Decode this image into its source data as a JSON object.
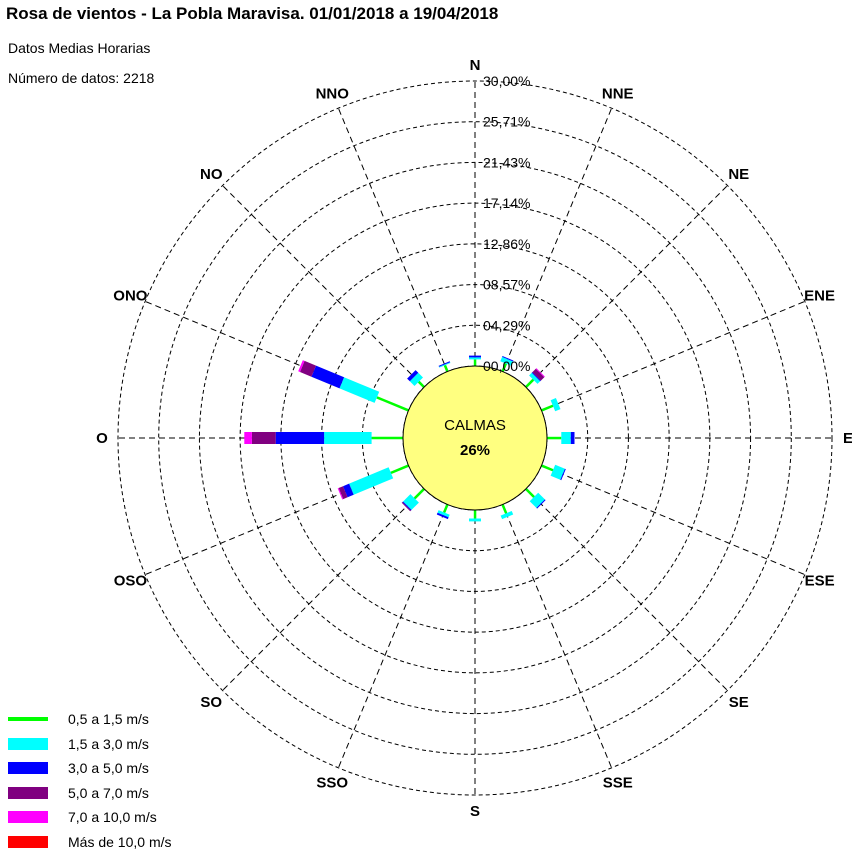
{
  "header": {
    "title": "Rosa de vientos - La Pobla Maravisa. 01/01/2018 a 19/04/2018",
    "subtitle": "Datos Medias Horarias",
    "count_line": "Número de datos: 2218"
  },
  "chart_data": {
    "type": "wind-rose",
    "title": "Rosa de vientos - La Pobla Maravisa. 01/01/2018 a 19/04/2018",
    "directions": [
      "N",
      "NNE",
      "NE",
      "ENE",
      "E",
      "ESE",
      "SE",
      "SSE",
      "S",
      "SSO",
      "SO",
      "OSO",
      "O",
      "ONO",
      "NO",
      "NNO"
    ],
    "ring_labels": [
      "00,00%",
      "04,29%",
      "08,57%",
      "12,86%",
      "17,14%",
      "21,43%",
      "25,71%",
      "30,00%"
    ],
    "r_range": [
      0,
      30
    ],
    "calm": {
      "label": "CALMAS",
      "value": "26%"
    },
    "speed_classes": [
      {
        "name": "0,5 a 1,5 m/s",
        "color": "#00ff00"
      },
      {
        "name": "1,5 a 3,0 m/s",
        "color": "#00ffff"
      },
      {
        "name": "3,0 a 5,0 m/s",
        "color": "#0000ff"
      },
      {
        "name": "5,0 a 7,0 m/s",
        "color": "#800080"
      },
      {
        "name": "7,0 a 10,0 m/s",
        "color": "#ff00ff"
      },
      {
        "name": "Más de 10,0 m/s",
        "color": "#ff0000"
      }
    ],
    "series": [
      {
        "name": "0,5 a 1,5 m/s",
        "values": [
          0.7,
          0.9,
          1.1,
          1.3,
          1.5,
          1.3,
          1.2,
          1.0,
          0.9,
          0.9,
          1.4,
          2.0,
          3.3,
          3.6,
          0.8,
          0.7
        ]
      },
      {
        "name": "1,5 a 3,0 m/s",
        "values": [
          0.2,
          0.5,
          0.4,
          0.6,
          1.0,
          1.1,
          1.0,
          0.4,
          0.3,
          0.3,
          1.1,
          4.5,
          5.0,
          4.0,
          0.7,
          0.1
        ]
      },
      {
        "name": "3,0 a 5,0 m/s",
        "values": [
          0.2,
          0.1,
          0.1,
          0.0,
          0.4,
          0.1,
          0.1,
          0.0,
          0.0,
          0.2,
          0.1,
          0.7,
          5.1,
          3.2,
          0.4,
          0.1
        ]
      },
      {
        "name": "5,0 a 7,0 m/s",
        "values": [
          0.0,
          0.0,
          0.5,
          0.0,
          0.0,
          0.0,
          0.0,
          0.0,
          0.0,
          0.0,
          0.1,
          0.5,
          2.5,
          1.3,
          0.0,
          0.0
        ]
      },
      {
        "name": "7,0 a 10,0 m/s",
        "values": [
          0.0,
          0.0,
          0.1,
          0.0,
          0.0,
          0.0,
          0.0,
          0.0,
          0.0,
          0.0,
          0.0,
          0.1,
          0.8,
          0.2,
          0.0,
          0.0
        ]
      },
      {
        "name": "Más de 10,0 m/s",
        "values": [
          0,
          0,
          0,
          0,
          0,
          0,
          0,
          0,
          0,
          0,
          0,
          0,
          0,
          0,
          0,
          0
        ]
      }
    ],
    "colors": {
      "calm_fill": "#ffff80",
      "grid": "#000000"
    }
  }
}
